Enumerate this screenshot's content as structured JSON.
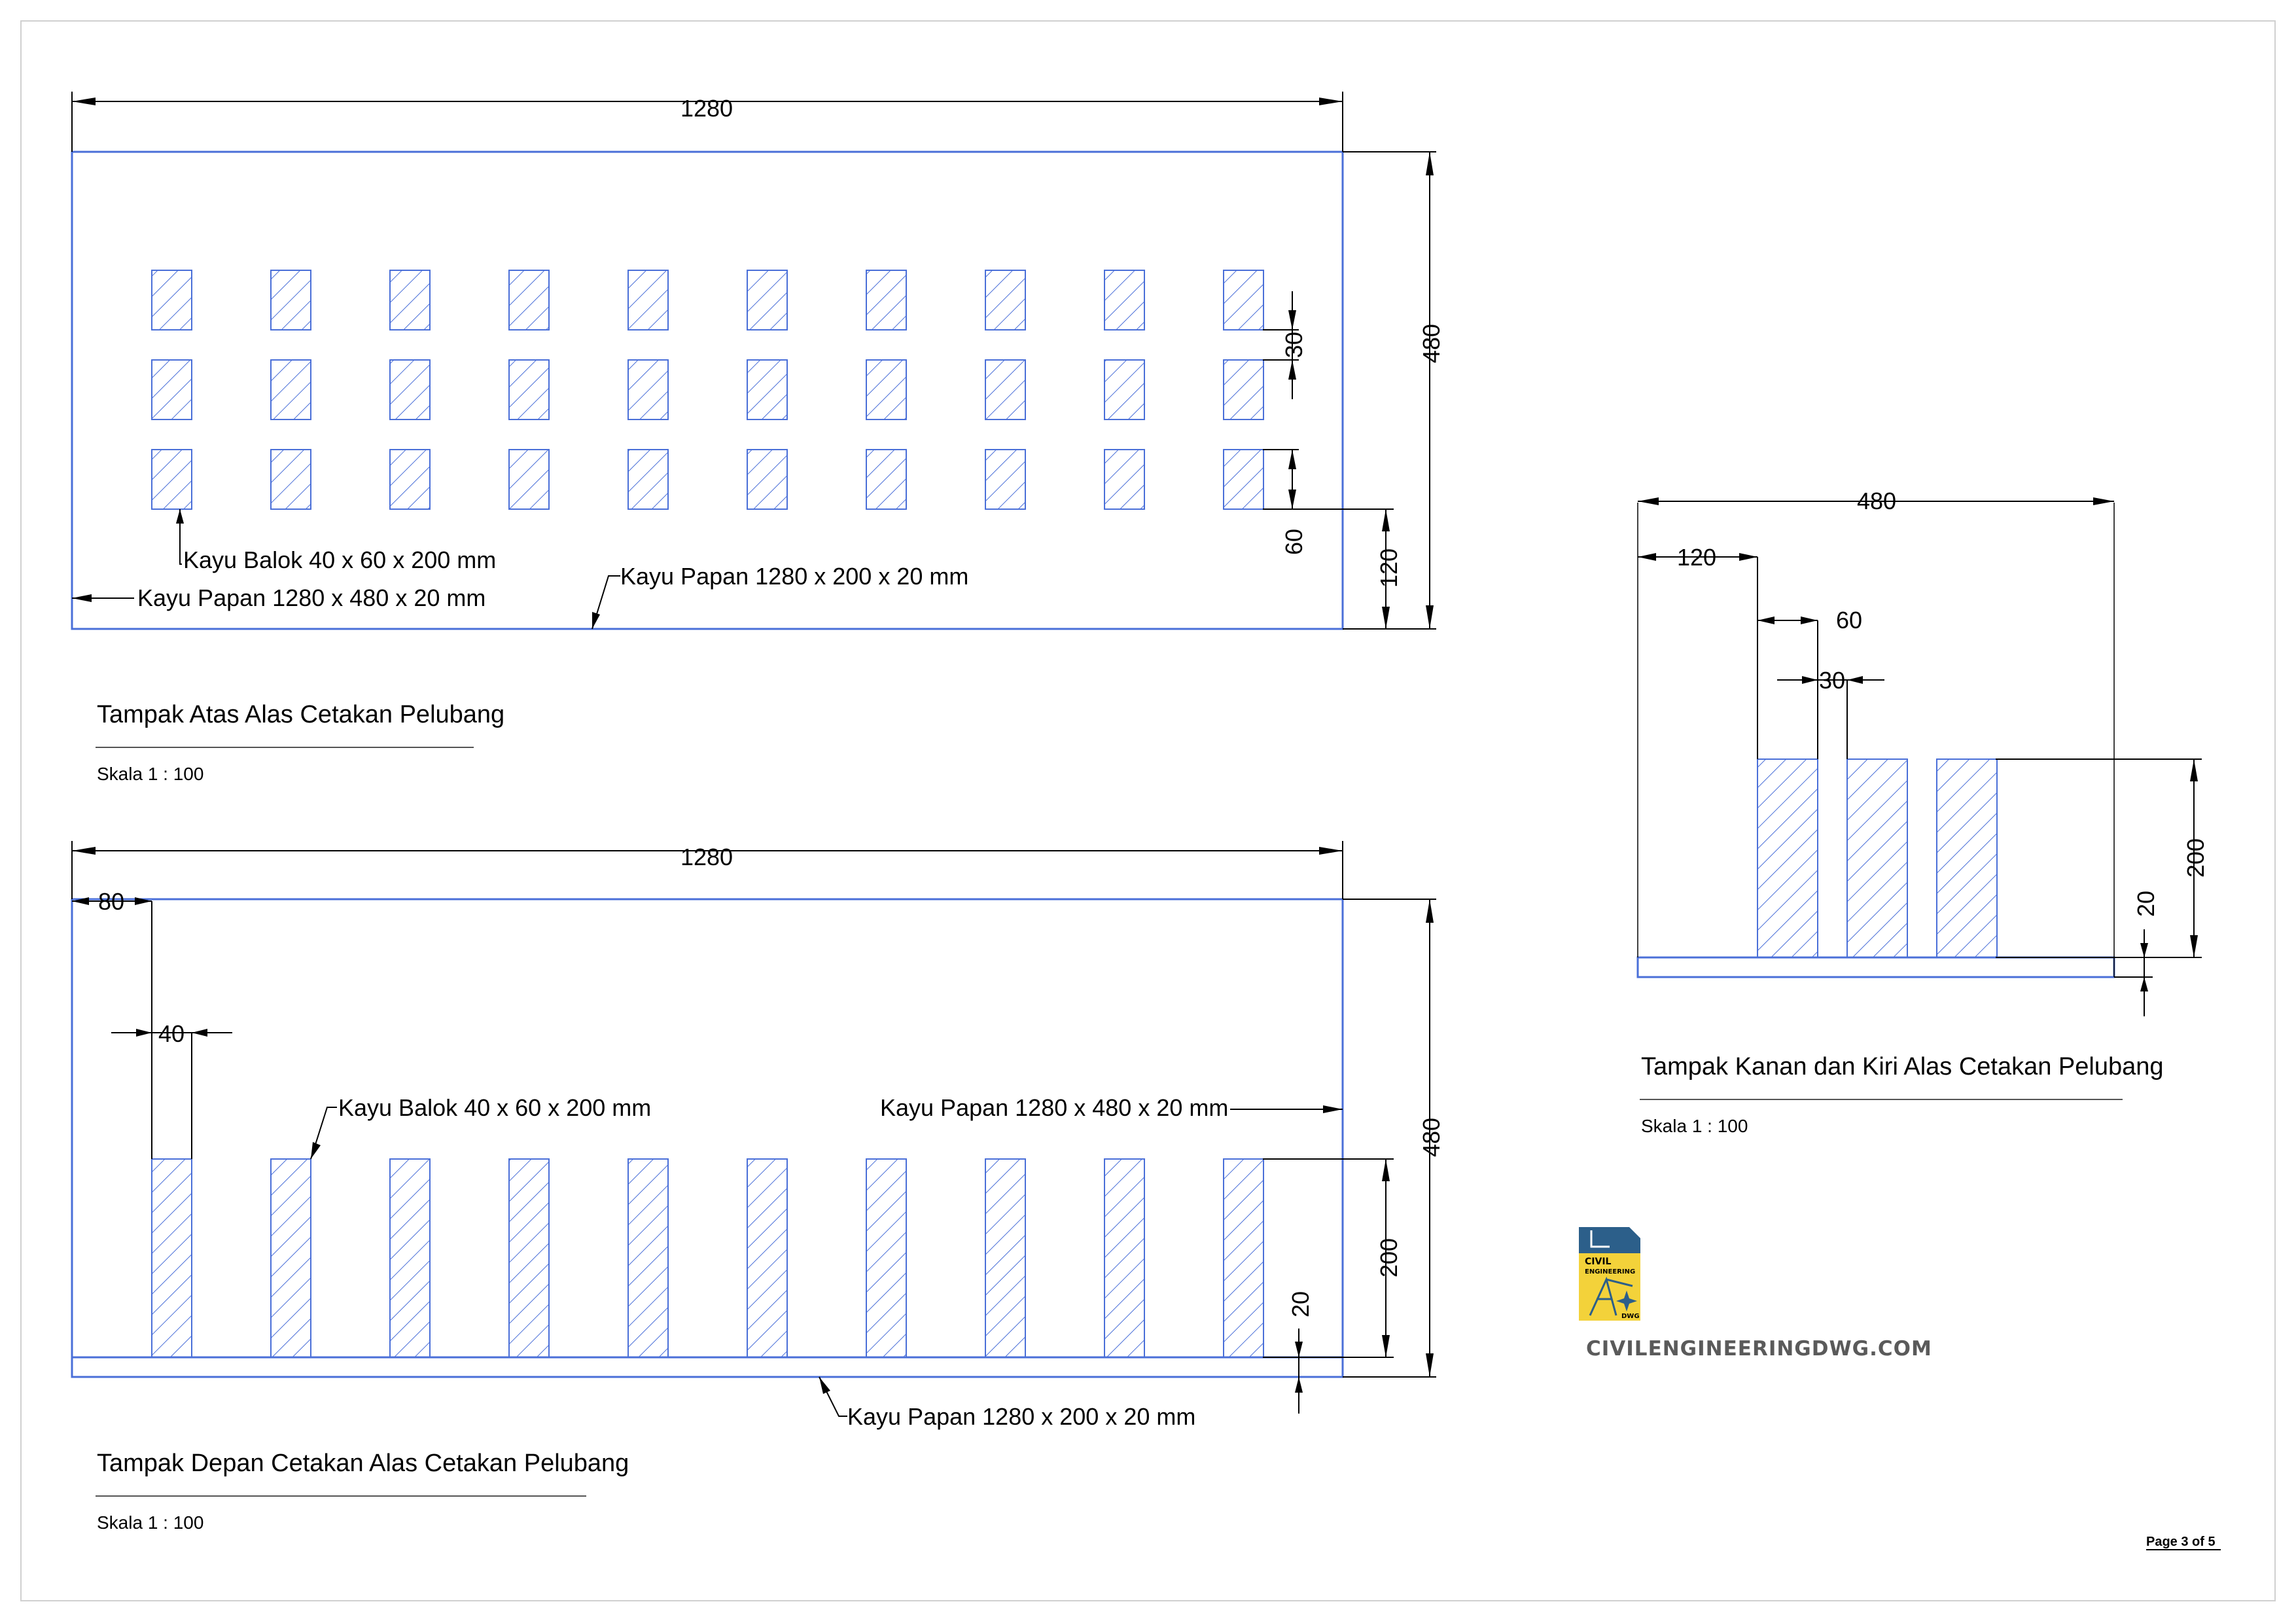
{
  "views": {
    "top": {
      "title": "Tampak Atas Alas Cetakan Pelubang",
      "scale": "Skala 1 : 100",
      "dims": {
        "width": "1280",
        "height": "480",
        "gap": "30",
        "block": "60",
        "edge": "120"
      },
      "labels": {
        "balok": "Kayu Balok 40 x 60 x 200 mm",
        "papan_alas": "Kayu Papan 1280 x 480 x 20 mm",
        "papan_sisi": "Kayu Papan 1280 x 200 x 20 mm"
      }
    },
    "front": {
      "title": "Tampak Depan Cetakan Alas Cetakan Pelubang",
      "scale": "Skala 1 : 100",
      "dims": {
        "width": "1280",
        "height": "480",
        "offset": "80",
        "block_w": "40",
        "block_h": "200",
        "base": "20"
      },
      "labels": {
        "balok": "Kayu Balok 40 x 60 x 200 mm",
        "papan_alas": "Kayu Papan 1280 x 480 x 20 mm",
        "papan_sisi": "Kayu Papan 1280 x 200 x 20 mm"
      }
    },
    "side": {
      "title": "Tampak Kanan dan Kiri Alas Cetakan Pelubang",
      "scale": "Skala 1 : 100",
      "dims": {
        "width": "480",
        "offset": "120",
        "block": "60",
        "gap": "30",
        "height": "200",
        "base": "20"
      }
    }
  },
  "logo": {
    "line1": "CIVIL",
    "line2": "ENGINEERING",
    "line3": "DWG",
    "site": "CIVILENGINEERINGDWG.COM"
  },
  "page": {
    "label": "Page 3 of 5"
  },
  "colors": {
    "drawing": "#4a6fd8",
    "dimension": "#000000",
    "logo_yellow": "#f3d23a",
    "logo_blue": "#2c5f8a"
  }
}
